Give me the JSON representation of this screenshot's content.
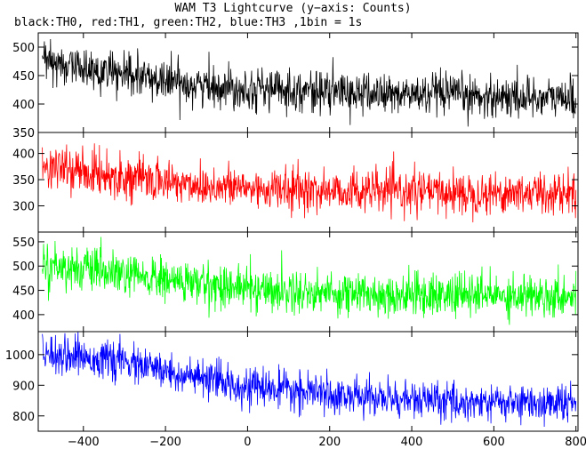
{
  "chart_data": {
    "type": "line",
    "title": "WAM T3 Lightcurve (y−axis: Counts)",
    "subtitle": "black:TH0, red:TH1, green:TH2, blue:TH3 ,1bin = 1s",
    "xlim": [
      -510,
      805
    ],
    "x_ticks": [
      -400,
      -200,
      0,
      200,
      400,
      600,
      800
    ],
    "x_tick_labels": [
      "−400",
      "−200",
      "0",
      "200",
      "400",
      "600",
      "800"
    ],
    "x_step": 1,
    "grid": false,
    "panels": [
      {
        "series": "TH0",
        "color": "#000000",
        "ylim": [
          350,
          525
        ],
        "y_ticks": [
          350,
          400,
          450,
          500
        ],
        "trend": [
          [
            -500,
            475
          ],
          [
            -300,
            450
          ],
          [
            -100,
            432
          ],
          [
            100,
            425
          ],
          [
            300,
            418
          ],
          [
            500,
            415
          ],
          [
            800,
            410
          ]
        ],
        "noise_sd": 18
      },
      {
        "series": "TH1",
        "color": "#ff0000",
        "ylim": [
          250,
          440
        ],
        "y_ticks": [
          300,
          350,
          400
        ],
        "trend": [
          [
            -500,
            375
          ],
          [
            -300,
            355
          ],
          [
            -100,
            338
          ],
          [
            100,
            330
          ],
          [
            300,
            328
          ],
          [
            500,
            325
          ],
          [
            800,
            325
          ]
        ],
        "noise_sd": 20
      },
      {
        "series": "TH2",
        "color": "#00ff00",
        "ylim": [
          365,
          570
        ],
        "y_ticks": [
          400,
          450,
          500,
          550
        ],
        "trend": [
          [
            -500,
            505
          ],
          [
            -300,
            480
          ],
          [
            -100,
            462
          ],
          [
            100,
            448
          ],
          [
            300,
            442
          ],
          [
            500,
            440
          ],
          [
            800,
            440
          ]
        ],
        "noise_sd": 22
      },
      {
        "series": "TH3",
        "color": "#0000ff",
        "ylim": [
          750,
          1075
        ],
        "y_ticks": [
          800,
          900,
          1000
        ],
        "trend": [
          [
            -500,
            1010
          ],
          [
            -300,
            975
          ],
          [
            -200,
            945
          ],
          [
            -100,
            915
          ],
          [
            100,
            880
          ],
          [
            300,
            860
          ],
          [
            500,
            845
          ],
          [
            800,
            840
          ]
        ],
        "noise_sd": 30
      }
    ]
  }
}
